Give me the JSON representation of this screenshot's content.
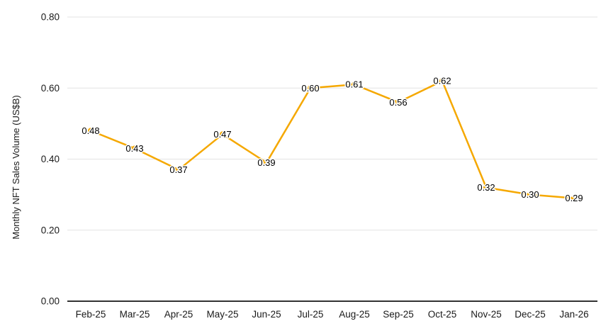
{
  "chart_data": {
    "type": "line",
    "title": "",
    "xlabel": "",
    "ylabel": "Monthly NFT Sales Volume (US$B)",
    "categories": [
      "Feb-25",
      "Mar-25",
      "Apr-25",
      "May-25",
      "Jun-25",
      "Jul-25",
      "Aug-25",
      "Sep-25",
      "Oct-25",
      "Nov-25",
      "Dec-25",
      "Jan-26"
    ],
    "series": [
      {
        "name": "Monthly NFT Sales Volume (US$B)",
        "values": [
          0.48,
          0.43,
          0.37,
          0.47,
          0.39,
          0.6,
          0.61,
          0.56,
          0.62,
          0.32,
          0.3,
          0.29
        ],
        "point_labels": [
          "0.48",
          "0.43",
          "0.37",
          "0.47",
          "0.39",
          "0.60",
          "0.61",
          "0.56",
          "0.62",
          "0.32",
          "0.30",
          "0.29"
        ]
      }
    ],
    "ylim": [
      0.0,
      0.8
    ],
    "ytick_labels": [
      "0.00",
      "0.20",
      "0.40",
      "0.60",
      "0.80"
    ],
    "ytick_values": [
      0.0,
      0.2,
      0.4,
      0.6,
      0.8
    ],
    "grid": "horizontal",
    "legend": "none",
    "colors": {
      "line": "#F5A800",
      "marker": "#F5A800",
      "data_label": "#000000",
      "data_label_halo": "#FFFFFF",
      "gridline": "#E3E3E3",
      "axis_baseline": "#333333",
      "tick_label": "#1A1A1A",
      "background": "#FFFFFF"
    }
  }
}
